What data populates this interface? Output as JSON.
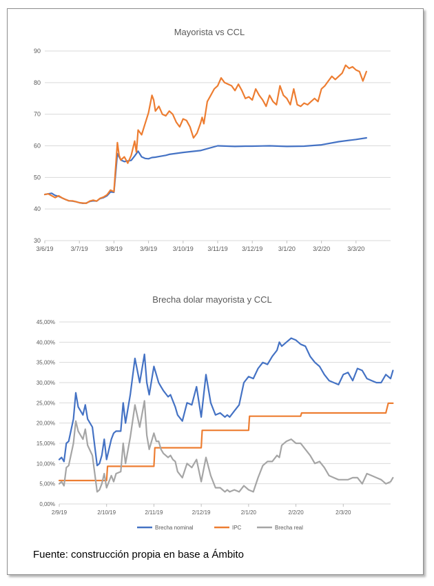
{
  "chart_data": [
    {
      "type": "line",
      "title": "Mayorista vs CCL",
      "xlabel": "",
      "ylabel": "",
      "ylim": [
        30,
        90
      ],
      "yticks": [
        "30",
        "40",
        "50",
        "60",
        "70",
        "80",
        "90"
      ],
      "xticks": [
        "3/6/19",
        "3/7/19",
        "3/8/19",
        "3/9/19",
        "3/10/19",
        "3/11/19",
        "3/12/19",
        "3/1/20",
        "3/2/20",
        "3/3/20"
      ],
      "grid": true,
      "legend": "none",
      "colors": {
        "mayorista": "#4472c4",
        "ccl": "#ed7d31",
        "grid": "#d9d9d9"
      },
      "series": [
        {
          "key": "mayorista",
          "x": [
            0,
            0.1,
            0.2,
            0.3,
            0.4,
            0.5,
            0.6,
            0.7,
            0.8,
            0.9,
            1.0,
            1.1,
            1.2,
            1.3,
            1.4,
            1.5,
            1.6,
            1.7,
            1.8,
            1.9,
            2.0,
            2.1,
            2.2,
            2.3,
            2.4,
            2.5,
            2.6,
            2.7,
            2.8,
            2.9,
            3.0,
            3.05,
            3.1,
            3.2,
            3.3,
            3.4,
            3.5,
            3.6,
            3.8,
            4.0,
            4.5,
            5.0,
            5.5,
            5.8,
            6.0,
            6.5,
            7.0,
            7.5,
            8.0,
            8.5,
            9.0,
            9.3
          ],
          "values": [
            44.6,
            44.8,
            45.0,
            44.3,
            44.0,
            43.5,
            43.0,
            42.6,
            42.5,
            42.3,
            42.0,
            41.8,
            41.9,
            42.4,
            42.6,
            42.5,
            43.3,
            43.6,
            44.2,
            45.4,
            45.3,
            57.5,
            55.5,
            55.0,
            55.2,
            55.4,
            56.8,
            58.3,
            56.5,
            56.0,
            55.9,
            56.1,
            56.3,
            56.4,
            56.6,
            56.8,
            57.0,
            57.3,
            57.6,
            57.9,
            58.5,
            60.0,
            59.8,
            59.9,
            59.9,
            60.0,
            59.8,
            59.9,
            60.3,
            61.3,
            62.0,
            62.5
          ]
        },
        {
          "key": "ccl",
          "x": [
            0,
            0.1,
            0.2,
            0.3,
            0.4,
            0.5,
            0.6,
            0.7,
            0.8,
            0.9,
            1.0,
            1.1,
            1.2,
            1.3,
            1.4,
            1.5,
            1.6,
            1.7,
            1.8,
            1.9,
            2.0,
            2.1,
            2.15,
            2.2,
            2.3,
            2.4,
            2.5,
            2.6,
            2.65,
            2.7,
            2.8,
            2.9,
            3.0,
            3.1,
            3.15,
            3.2,
            3.3,
            3.4,
            3.5,
            3.6,
            3.7,
            3.8,
            3.9,
            4.0,
            4.1,
            4.2,
            4.3,
            4.4,
            4.5,
            4.55,
            4.6,
            4.7,
            4.8,
            4.9,
            5.0,
            5.1,
            5.2,
            5.3,
            5.4,
            5.5,
            5.6,
            5.7,
            5.8,
            5.9,
            6.0,
            6.1,
            6.2,
            6.3,
            6.4,
            6.5,
            6.6,
            6.7,
            6.8,
            6.9,
            7.0,
            7.1,
            7.2,
            7.3,
            7.4,
            7.5,
            7.6,
            7.7,
            7.8,
            7.9,
            8.0,
            8.1,
            8.2,
            8.3,
            8.4,
            8.5,
            8.6,
            8.7,
            8.8,
            8.9,
            9.0,
            9.1,
            9.2,
            9.3
          ],
          "values": [
            44.6,
            44.8,
            44.2,
            43.6,
            44.2,
            43.5,
            43.0,
            42.6,
            42.6,
            42.3,
            42.0,
            41.9,
            41.8,
            42.5,
            42.8,
            42.5,
            43.4,
            43.8,
            44.5,
            46.0,
            45.5,
            61.0,
            57.0,
            55.5,
            56.5,
            54.5,
            57.0,
            61.5,
            58.0,
            65.0,
            63.5,
            67.0,
            70.5,
            76.0,
            74.5,
            71.0,
            72.5,
            70.0,
            69.5,
            71.0,
            70.0,
            67.5,
            66.0,
            68.5,
            68.0,
            66.0,
            62.5,
            64.0,
            67.0,
            69.0,
            67.0,
            74.0,
            76.0,
            78.0,
            79.0,
            81.5,
            80.0,
            79.5,
            79.0,
            77.5,
            79.5,
            77.5,
            75.0,
            75.5,
            74.5,
            78.0,
            76.0,
            74.5,
            72.5,
            76.0,
            74.0,
            73.0,
            79.0,
            76.0,
            75.0,
            73.0,
            78.0,
            73.0,
            72.5,
            73.5,
            73.0,
            74.0,
            75.0,
            74.0,
            78.0,
            79.0,
            80.5,
            82.0,
            81.0,
            82.0,
            83.0,
            85.5,
            84.5,
            85.0,
            84.0,
            83.5,
            80.5,
            83.5
          ]
        }
      ]
    },
    {
      "type": "line",
      "title": "Brecha dolar mayorista y CCL",
      "xlabel": "",
      "ylabel": "",
      "ylim": [
        0,
        45
      ],
      "yticks": [
        "0,00%",
        "5,00%",
        "10,00%",
        "15,00%",
        "20,00%",
        "25,00%",
        "30,00%",
        "35,00%",
        "40,00%",
        "45,00%"
      ],
      "xticks": [
        "2/9/19",
        "2/10/19",
        "2/11/19",
        "2/12/19",
        "2/1/20",
        "2/2/20",
        "2/3/20"
      ],
      "grid": true,
      "legend": "bottom",
      "colors": {
        "nominal": "#4472c4",
        "ipc": "#ed7d31",
        "real": "#a5a5a5",
        "grid": "#d9d9d9"
      },
      "series": [
        {
          "key": "nominal",
          "name": "Brecha nominal",
          "x": [
            0,
            0.05,
            0.1,
            0.15,
            0.2,
            0.3,
            0.35,
            0.4,
            0.5,
            0.55,
            0.6,
            0.7,
            0.8,
            0.85,
            0.9,
            0.95,
            1.0,
            1.1,
            1.15,
            1.2,
            1.3,
            1.35,
            1.4,
            1.5,
            1.6,
            1.7,
            1.8,
            1.85,
            1.9,
            2.0,
            2.05,
            2.1,
            2.15,
            2.2,
            2.3,
            2.35,
            2.4,
            2.45,
            2.5,
            2.6,
            2.7,
            2.8,
            2.9,
            3.0,
            3.1,
            3.2,
            3.3,
            3.4,
            3.5,
            3.55,
            3.6,
            3.7,
            3.8,
            3.9,
            4.0,
            4.1,
            4.2,
            4.3,
            4.4,
            4.5,
            4.6,
            4.65,
            4.7,
            4.8,
            4.9,
            5.0,
            5.1,
            5.2,
            5.3,
            5.4,
            5.5,
            5.6,
            5.7,
            5.8,
            5.9,
            6.0,
            6.1,
            6.2,
            6.3,
            6.4,
            6.5,
            6.6,
            6.7,
            6.8,
            6.9,
            7.0,
            7.05
          ],
          "values": [
            11.0,
            11.5,
            10.5,
            15.0,
            15.5,
            21.0,
            27.5,
            24.0,
            22.0,
            24.5,
            21.0,
            19.0,
            9.5,
            10.0,
            12.0,
            16.0,
            11.0,
            16.0,
            17.5,
            18.0,
            18.0,
            25.0,
            20.0,
            27.0,
            36.0,
            30.0,
            37.0,
            30.0,
            27.0,
            34.0,
            32.0,
            30.0,
            29.0,
            28.0,
            26.5,
            27.0,
            25.5,
            24.0,
            22.0,
            20.5,
            25.0,
            24.5,
            29.0,
            21.5,
            32.0,
            25.0,
            22.0,
            22.5,
            21.5,
            22.0,
            21.5,
            23.0,
            24.5,
            30.0,
            31.5,
            31.0,
            33.5,
            35.0,
            34.5,
            36.5,
            38.0,
            40.0,
            39.0,
            40.0,
            41.0,
            40.5,
            39.5,
            39.0,
            36.5,
            35.0,
            34.0,
            32.0,
            30.5,
            30.0,
            29.5,
            32.0,
            32.5,
            30.5,
            33.5,
            33.0,
            31.0,
            30.5,
            30.0,
            30.0,
            32.0,
            31.0,
            33.0
          ]
        },
        {
          "key": "ipc",
          "name": "IPC",
          "x": [
            0,
            1.0,
            1.02,
            2.0,
            2.02,
            3.0,
            3.02,
            4.0,
            4.02,
            5.1,
            5.12,
            6.9,
            6.95,
            7.05
          ],
          "values": [
            5.8,
            5.8,
            9.3,
            9.3,
            13.9,
            13.9,
            18.2,
            18.2,
            21.7,
            21.7,
            22.5,
            22.5,
            24.9,
            24.9
          ]
        },
        {
          "key": "real",
          "name": "Brecha real",
          "x": [
            0,
            0.05,
            0.1,
            0.15,
            0.2,
            0.3,
            0.35,
            0.4,
            0.5,
            0.55,
            0.6,
            0.7,
            0.8,
            0.85,
            0.9,
            0.95,
            1.0,
            1.1,
            1.15,
            1.2,
            1.3,
            1.35,
            1.4,
            1.5,
            1.6,
            1.7,
            1.8,
            1.85,
            1.9,
            2.0,
            2.05,
            2.1,
            2.15,
            2.2,
            2.3,
            2.35,
            2.4,
            2.45,
            2.5,
            2.6,
            2.7,
            2.8,
            2.9,
            3.0,
            3.1,
            3.2,
            3.3,
            3.4,
            3.5,
            3.55,
            3.6,
            3.7,
            3.8,
            3.9,
            4.0,
            4.1,
            4.2,
            4.3,
            4.4,
            4.5,
            4.6,
            4.65,
            4.7,
            4.8,
            4.9,
            5.0,
            5.1,
            5.2,
            5.3,
            5.4,
            5.5,
            5.6,
            5.7,
            5.8,
            5.9,
            6.0,
            6.1,
            6.2,
            6.3,
            6.4,
            6.5,
            6.6,
            6.7,
            6.8,
            6.9,
            7.0,
            7.05
          ],
          "values": [
            5.0,
            5.5,
            4.5,
            9.0,
            9.5,
            15.0,
            20.5,
            18.0,
            16.0,
            18.5,
            14.5,
            12.0,
            3.0,
            3.5,
            5.0,
            7.5,
            4.0,
            7.0,
            5.5,
            7.5,
            8.0,
            15.0,
            10.0,
            16.5,
            24.5,
            19.0,
            25.5,
            17.0,
            13.5,
            17.5,
            15.5,
            15.5,
            13.5,
            12.5,
            11.5,
            12.0,
            11.0,
            10.5,
            8.0,
            6.5,
            10.0,
            9.0,
            11.0,
            5.5,
            11.5,
            7.0,
            4.0,
            4.0,
            3.0,
            3.5,
            3.0,
            3.5,
            3.0,
            4.5,
            3.5,
            3.0,
            6.5,
            9.5,
            10.5,
            10.5,
            12.0,
            11.5,
            14.5,
            15.5,
            16.0,
            15.0,
            15.0,
            13.5,
            12.0,
            10.0,
            10.5,
            9.0,
            7.0,
            6.5,
            6.0,
            6.0,
            6.0,
            6.5,
            6.5,
            5.0,
            7.5,
            7.0,
            6.5,
            6.0,
            5.0,
            5.5,
            6.5
          ]
        }
      ]
    }
  ],
  "caption": "Fuente: construcción propia en base a Ámbito"
}
